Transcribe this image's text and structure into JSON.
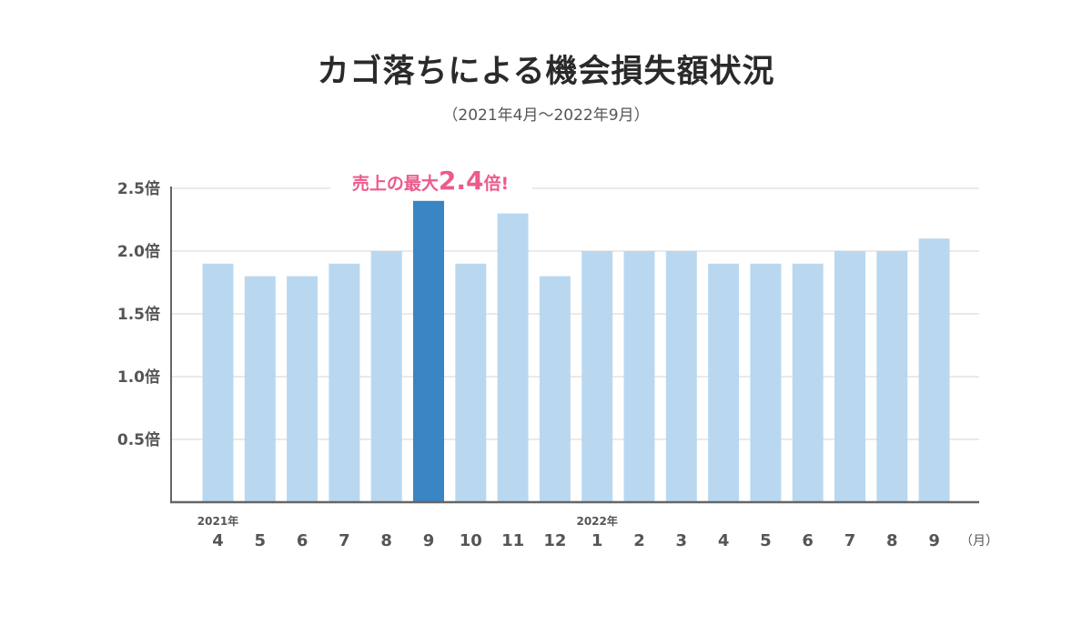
{
  "chart_data": {
    "type": "bar",
    "title": "カゴ落ちによる機会損失額状況",
    "subtitle": "（2021年4月～2022年9月）",
    "categories": [
      "4",
      "5",
      "6",
      "7",
      "8",
      "9",
      "10",
      "11",
      "12",
      "1",
      "2",
      "3",
      "4",
      "5",
      "6",
      "7",
      "8",
      "9"
    ],
    "values": [
      1.9,
      1.8,
      1.8,
      1.9,
      2.0,
      2.4,
      1.9,
      2.3,
      1.8,
      2.0,
      2.0,
      2.0,
      1.9,
      1.9,
      1.9,
      2.0,
      2.0,
      2.1
    ],
    "highlight_index": 5,
    "y_ticks": [
      "0.5倍",
      "1.0倍",
      "1.5倍",
      "2.0倍",
      "2.5倍"
    ],
    "y_tick_values": [
      0.5,
      1.0,
      1.5,
      2.0,
      2.5
    ],
    "ylim": [
      0,
      2.5
    ],
    "x_unit": "（月）",
    "year_labels": [
      {
        "index": 0,
        "label": "2021年"
      },
      {
        "index": 9,
        "label": "2022年"
      }
    ],
    "annotation": {
      "prefix": "売上の最大",
      "value": "2.4",
      "suffix": "倍!"
    },
    "grid": true,
    "colors": {
      "bar": "#b9d8f0",
      "highlight": "#3a85c3",
      "annotation": "#ee5a8a",
      "grid": "#e3e3e3",
      "axis": "#666666"
    }
  }
}
